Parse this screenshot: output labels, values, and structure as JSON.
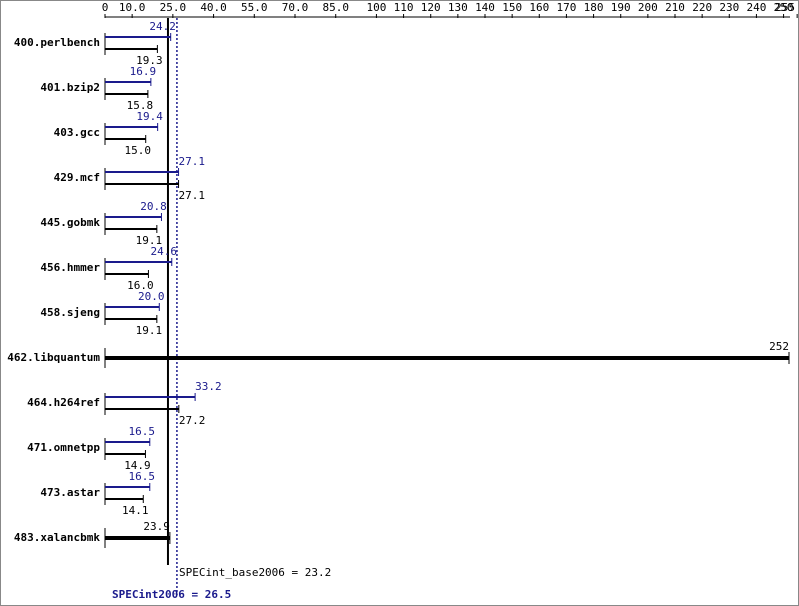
{
  "chart_data": {
    "type": "spec-bar",
    "categories": [
      "400.perlbench",
      "401.bzip2",
      "403.gcc",
      "429.mcf",
      "445.gobmk",
      "456.hmmer",
      "458.sjeng",
      "462.libquantum",
      "464.h264ref",
      "471.omnetpp",
      "473.astar",
      "483.xalancbmk"
    ],
    "series": [
      {
        "color": "#1a1a8c",
        "values": [
          24.2,
          16.9,
          19.4,
          27.1,
          20.8,
          24.6,
          20.0,
          null,
          33.2,
          16.5,
          16.5,
          null
        ],
        "value_labels": [
          "24.2",
          "16.9",
          "19.4",
          "27.1",
          "20.8",
          "24.6",
          "20.0",
          null,
          "33.2",
          "16.5",
          "16.5",
          null
        ]
      },
      {
        "color": "#000000",
        "values": [
          19.3,
          15.8,
          15.0,
          27.1,
          19.1,
          16.0,
          19.1,
          252,
          27.2,
          14.9,
          14.1,
          23.9
        ],
        "value_labels": [
          "19.3",
          "15.8",
          "15.0",
          "27.1",
          "19.1",
          "16.0",
          "19.1",
          "252",
          "27.2",
          "14.9",
          "14.1",
          "23.9"
        ]
      }
    ],
    "xlim": [
      0,
      252
    ],
    "xticks": [
      0,
      {
        "value": 10,
        "label": "10.0"
      },
      {
        "value": 25,
        "label": "25.0"
      },
      {
        "value": 40,
        "label": "40.0"
      },
      {
        "value": 55,
        "label": "55.0"
      },
      {
        "value": 70,
        "label": "70.0"
      },
      {
        "value": 85,
        "label": "85.0"
      },
      100,
      110,
      120,
      130,
      140,
      150,
      160,
      170,
      180,
      190,
      200,
      210,
      220,
      230,
      240,
      250,
      255
    ],
    "reference_lines": [
      {
        "value": 23.2,
        "label": "SPECint_base2006 = 23.2",
        "color": "#000000",
        "style": "solid"
      },
      {
        "value": 26.5,
        "label": "SPECint2006 = 26.5",
        "color": "#1a1a8c",
        "style": "dotted"
      }
    ]
  }
}
